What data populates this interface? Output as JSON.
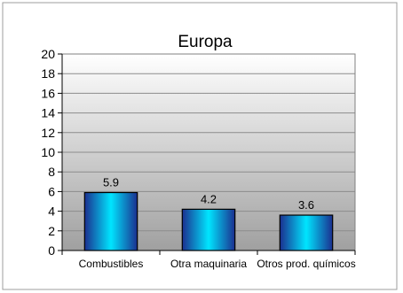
{
  "chart_data": {
    "type": "bar",
    "title": "Europa",
    "categories": [
      "Combustibles",
      "Otra maquinaria",
      "Otros prod. químicos"
    ],
    "values": [
      5.9,
      4.2,
      3.6
    ],
    "value_labels": [
      "5.9",
      "4.2",
      "3.6"
    ],
    "xlabel": "",
    "ylabel": "",
    "ylim": [
      0,
      20
    ],
    "yticks": [
      0,
      2,
      4,
      6,
      8,
      10,
      12,
      14,
      16,
      18,
      20
    ],
    "grid": true,
    "legend": "none",
    "colors": {
      "bar_light": "#00e5ff",
      "bar_dark": "#1b2f8f",
      "plot_top": "#ffffff",
      "plot_bottom": "#a0a0a0",
      "gridline": "#8c8c8c",
      "axis": "#000000"
    }
  }
}
